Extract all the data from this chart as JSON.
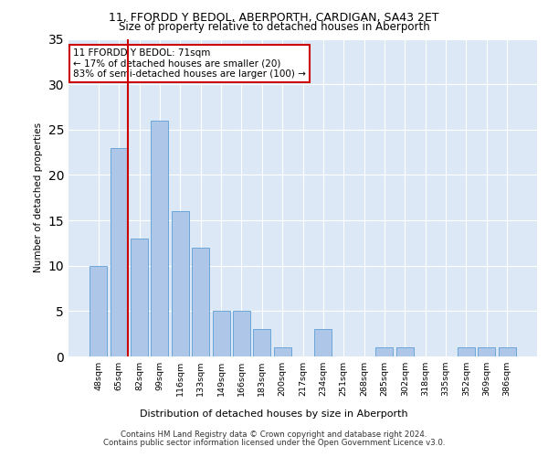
{
  "title1": "11, FFORDD Y BEDOL, ABERPORTH, CARDIGAN, SA43 2ET",
  "title2": "Size of property relative to detached houses in Aberporth",
  "xlabel": "Distribution of detached houses by size in Aberporth",
  "ylabel": "Number of detached properties",
  "bar_labels": [
    "48sqm",
    "65sqm",
    "82sqm",
    "99sqm",
    "116sqm",
    "133sqm",
    "149sqm",
    "166sqm",
    "183sqm",
    "200sqm",
    "217sqm",
    "234sqm",
    "251sqm",
    "268sqm",
    "285sqm",
    "302sqm",
    "318sqm",
    "335sqm",
    "352sqm",
    "369sqm",
    "386sqm"
  ],
  "bar_values": [
    10,
    23,
    13,
    26,
    16,
    12,
    5,
    5,
    3,
    1,
    0,
    3,
    0,
    0,
    1,
    1,
    0,
    0,
    1,
    1,
    1
  ],
  "bar_color": "#aec6e8",
  "bar_edge_color": "#5a9fd4",
  "vline_x_index": 1,
  "vline_color": "#cc0000",
  "annotation_text": "11 FFORDD Y BEDOL: 71sqm\n← 17% of detached houses are smaller (20)\n83% of semi-detached houses are larger (100) →",
  "annotation_box_color": "#ffffff",
  "annotation_box_edge": "#cc0000",
  "ylim": [
    0,
    35
  ],
  "yticks": [
    0,
    5,
    10,
    15,
    20,
    25,
    30,
    35
  ],
  "bg_color": "#dce8f5",
  "footer1": "Contains HM Land Registry data © Crown copyright and database right 2024.",
  "footer2": "Contains public sector information licensed under the Open Government Licence v3.0."
}
